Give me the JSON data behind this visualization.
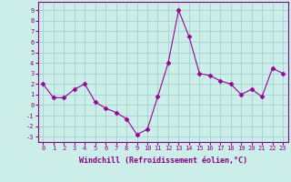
{
  "x": [
    0,
    1,
    2,
    3,
    4,
    5,
    6,
    7,
    8,
    9,
    10,
    11,
    12,
    13,
    14,
    15,
    16,
    17,
    18,
    19,
    20,
    21,
    22,
    23
  ],
  "y": [
    2,
    0.7,
    0.7,
    1.5,
    2,
    0.3,
    -0.3,
    -0.7,
    -1.3,
    -2.8,
    -2.3,
    0.8,
    4,
    9,
    6.5,
    3,
    2.8,
    2.3,
    2,
    1,
    1.5,
    0.8,
    3.5,
    3
  ],
  "line_color": "#990099",
  "marker": "D",
  "marker_size": 2.5,
  "bg_color": "#cceee8",
  "grid_color": "#99cccc",
  "axis_color": "#880088",
  "xlabel": "Windchill (Refroidissement éolien,°C)",
  "ylim": [
    -3.5,
    9.8
  ],
  "xlim": [
    -0.5,
    23.5
  ],
  "yticks": [
    -3,
    -2,
    -1,
    0,
    1,
    2,
    3,
    4,
    5,
    6,
    7,
    8,
    9
  ],
  "xticks": [
    0,
    1,
    2,
    3,
    4,
    5,
    6,
    7,
    8,
    9,
    10,
    11,
    12,
    13,
    14,
    15,
    16,
    17,
    18,
    19,
    20,
    21,
    22,
    23
  ],
  "tick_fontsize": 5.0,
  "label_fontsize": 6.0
}
